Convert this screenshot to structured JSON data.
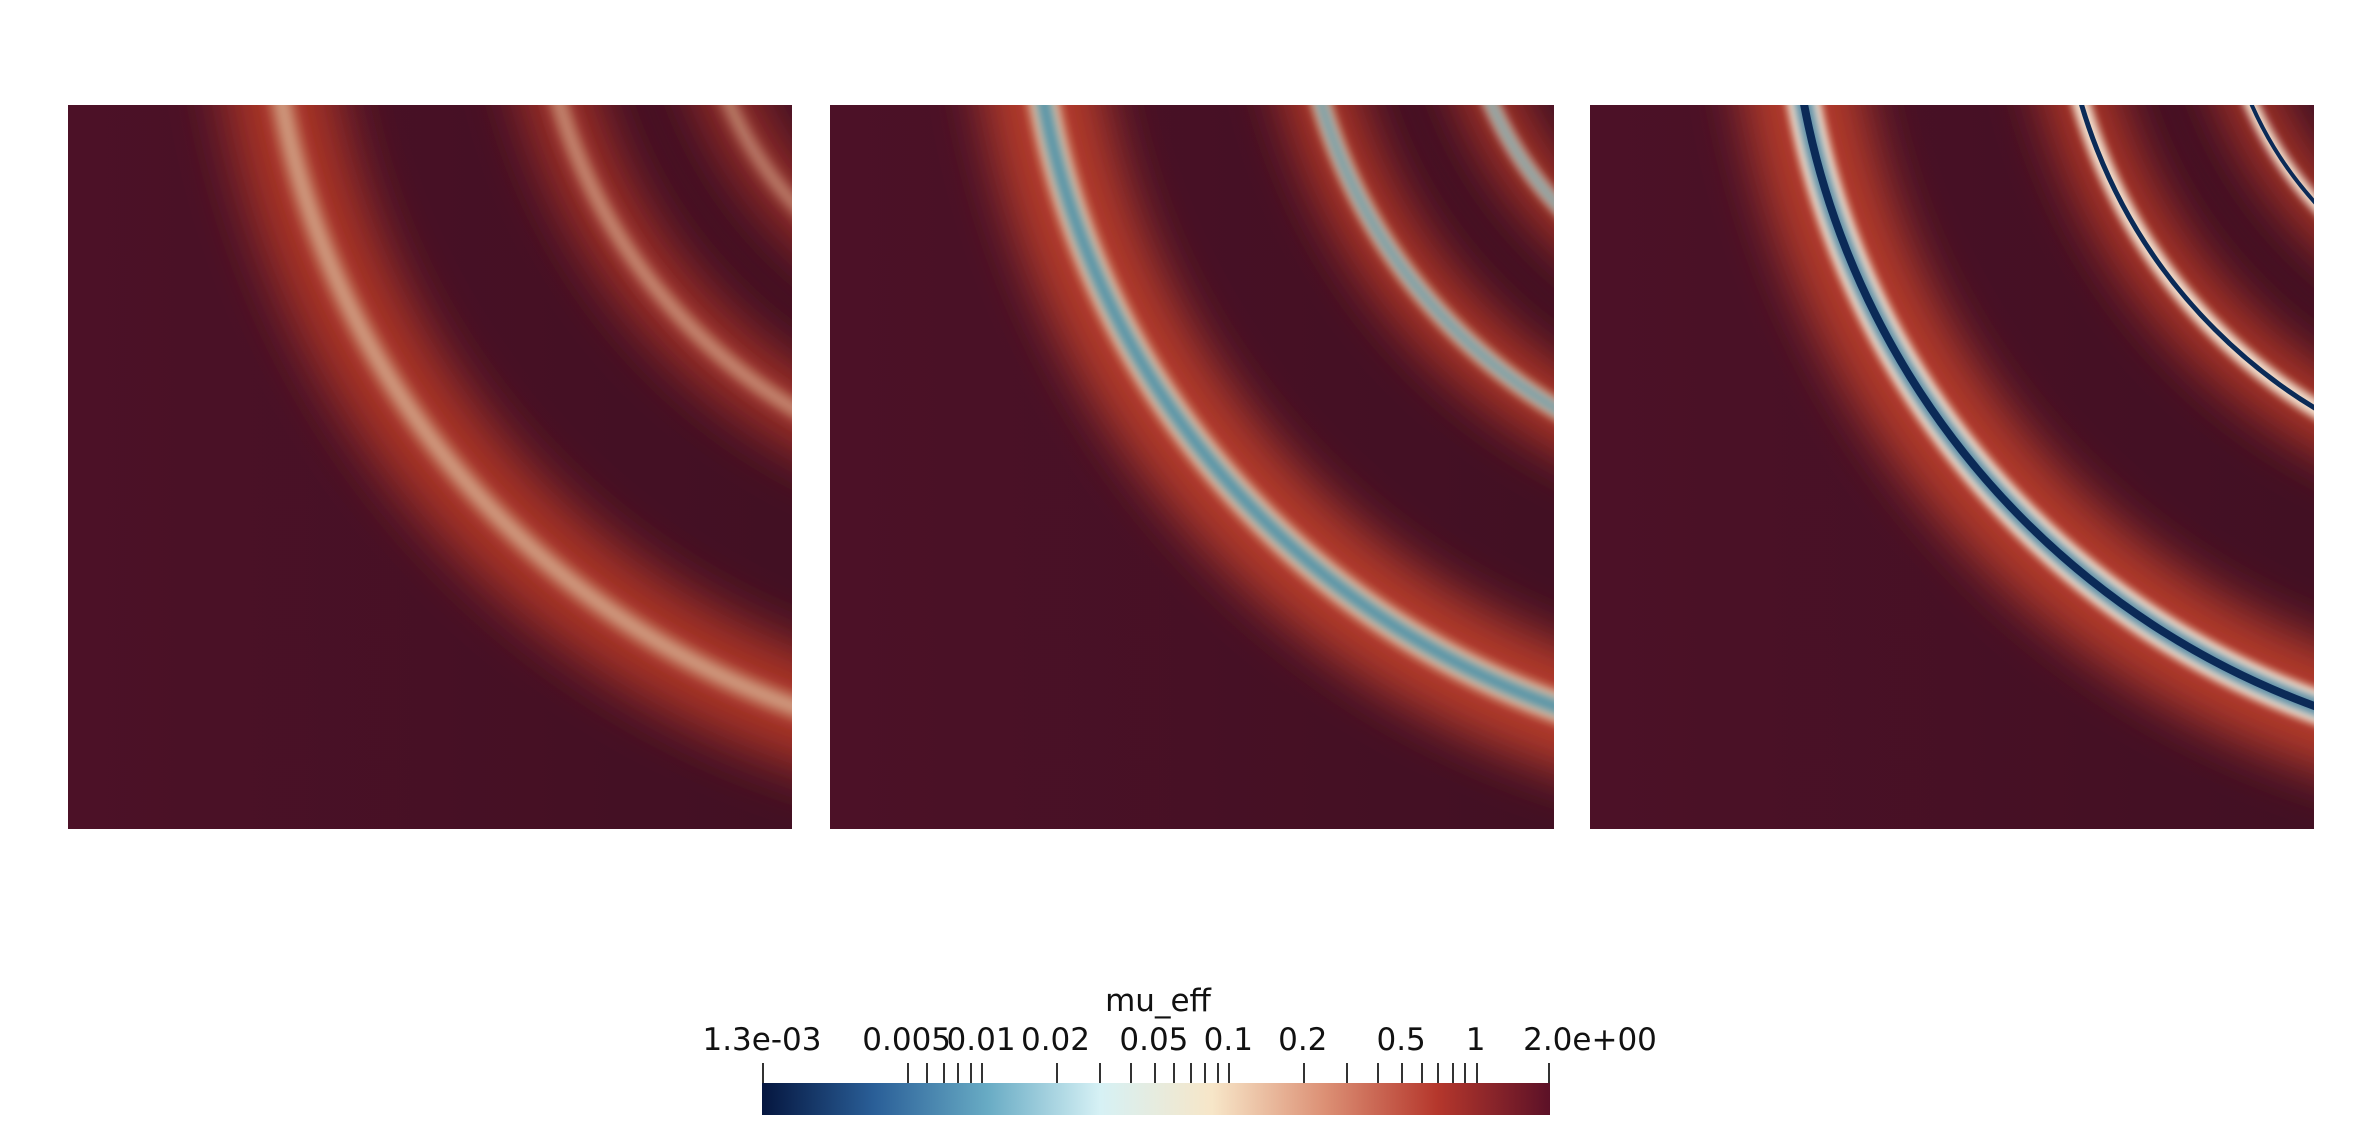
{
  "colorbar": {
    "title": "mu_eff",
    "min_label": "1.3e-03",
    "max_label": "2.0e+00",
    "labels": [
      {
        "text": "1.3e-03",
        "value": 0.0013,
        "anchor": "min"
      },
      {
        "text": "0.005",
        "value": 0.005
      },
      {
        "text": "0.01",
        "value": 0.01
      },
      {
        "text": "0.02",
        "value": 0.02
      },
      {
        "text": "0.05",
        "value": 0.05
      },
      {
        "text": "0.1",
        "value": 0.1
      },
      {
        "text": "0.2",
        "value": 0.2
      },
      {
        "text": "0.5",
        "value": 0.5
      },
      {
        "text": "1",
        "value": 1.0
      },
      {
        "text": "2.0e+00",
        "value": 2.0,
        "anchor": "max"
      }
    ],
    "ticks": [
      0.0013,
      0.005,
      0.006,
      0.007,
      0.008,
      0.009,
      0.01,
      0.02,
      0.03,
      0.04,
      0.05,
      0.06,
      0.07,
      0.08,
      0.09,
      0.1,
      0.2,
      0.3,
      0.4,
      0.5,
      0.6,
      0.7,
      0.8,
      0.9,
      1.0,
      2.0
    ],
    "scale": "log",
    "colormap_stops": [
      "#05163f",
      "#2a5f98",
      "#68abc4",
      "#d6f1f5",
      "#f7e6c8",
      "#dc9075",
      "#b5372c",
      "#5c1127"
    ]
  },
  "panels": [
    {
      "name": "panel-1",
      "ring_color": "#d3a487",
      "edge_color": "#b3492f",
      "background_color": "#4a1026"
    },
    {
      "name": "panel-2",
      "ring_color": "#4f93a9",
      "edge_color": "#b3492f",
      "background_color": "#4a1026"
    },
    {
      "name": "panel-3",
      "ring_color": "#0b2a57",
      "edge_color": "#5b8fa8",
      "background_color": "#4a1026"
    }
  ]
}
